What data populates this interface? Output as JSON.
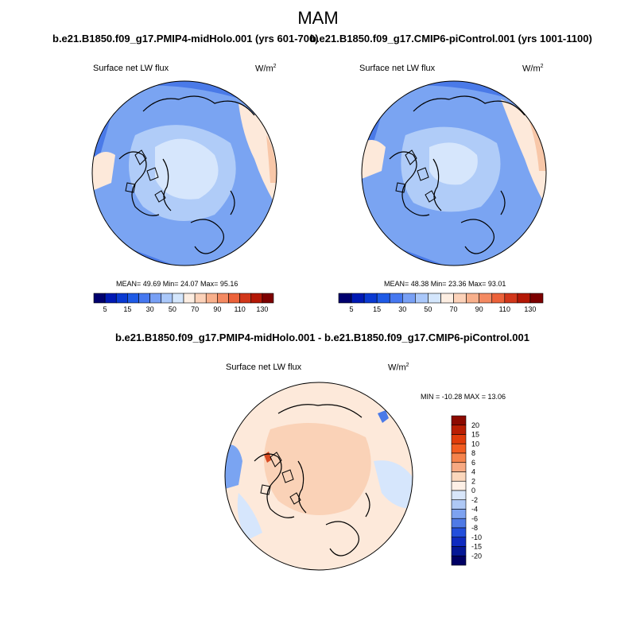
{
  "season": "MAM",
  "panels": [
    {
      "title": "b.e21.B1850.f09_g17.PMIP4-midHolo.001 (yrs 601-700)",
      "variable": "Surface net LW flux",
      "units": "W/m",
      "units_sup": "2",
      "stats": "MEAN=  49.69  Min=  24.07  Max=  95.16"
    },
    {
      "title": "b.e21.B1850.f09_g17.CMIP6-piControl.001 (yrs 1001-1100)",
      "variable": "Surface net LW flux",
      "units": "W/m",
      "units_sup": "2",
      "stats": "MEAN=  48.38  Min=  23.36  Max=  93.01"
    }
  ],
  "diff_panel": {
    "title": "b.e21.B1850.f09_g17.PMIP4-midHolo.001 - b.e21.B1850.f09_g17.CMIP6-piControl.001",
    "variable": "Surface net LW flux",
    "units": "W/m",
    "units_sup": "2",
    "stats": "MIN = -10.28 MAX =  13.06"
  },
  "colorbar_abs": {
    "labels": [
      "5",
      "15",
      "30",
      "50",
      "70",
      "90",
      "110",
      "130"
    ],
    "colors": [
      "#00006e",
      "#0019b4",
      "#0a3ad2",
      "#1e5ae6",
      "#4678f0",
      "#78a0f5",
      "#aac8fa",
      "#d4e6fc",
      "#fdeee2",
      "#fcd2b9",
      "#f8b08c",
      "#f48a62",
      "#ec623a",
      "#d2371a",
      "#b41806",
      "#7d0000"
    ]
  },
  "colorbar_diff": {
    "labels": [
      "20",
      "15",
      "10",
      "8",
      "6",
      "4",
      "2",
      "0",
      "-2",
      "-4",
      "-6",
      "-8",
      "-10",
      "-15",
      "-20"
    ],
    "colors": [
      "#8c0a00",
      "#b91e02",
      "#e03c0a",
      "#f25c20",
      "#f5834c",
      "#f7a982",
      "#fbd7bc",
      "#fdf0e6",
      "#d8e6fa",
      "#aec8f5",
      "#7da2f0",
      "#4f7ae6",
      "#234fdc",
      "#0f2bc0",
      "#051896",
      "#000064"
    ]
  },
  "map_colors": {
    "blue_dark": "#4a7ae8",
    "blue_mid": "#7aa4f2",
    "blue_light": "#b0ccf8",
    "pale_blue": "#d6e6fc",
    "pale_orange": "#fde9da",
    "light_orange": "#f8c7a8",
    "orange": "#f19e78",
    "red": "#d84a22"
  }
}
